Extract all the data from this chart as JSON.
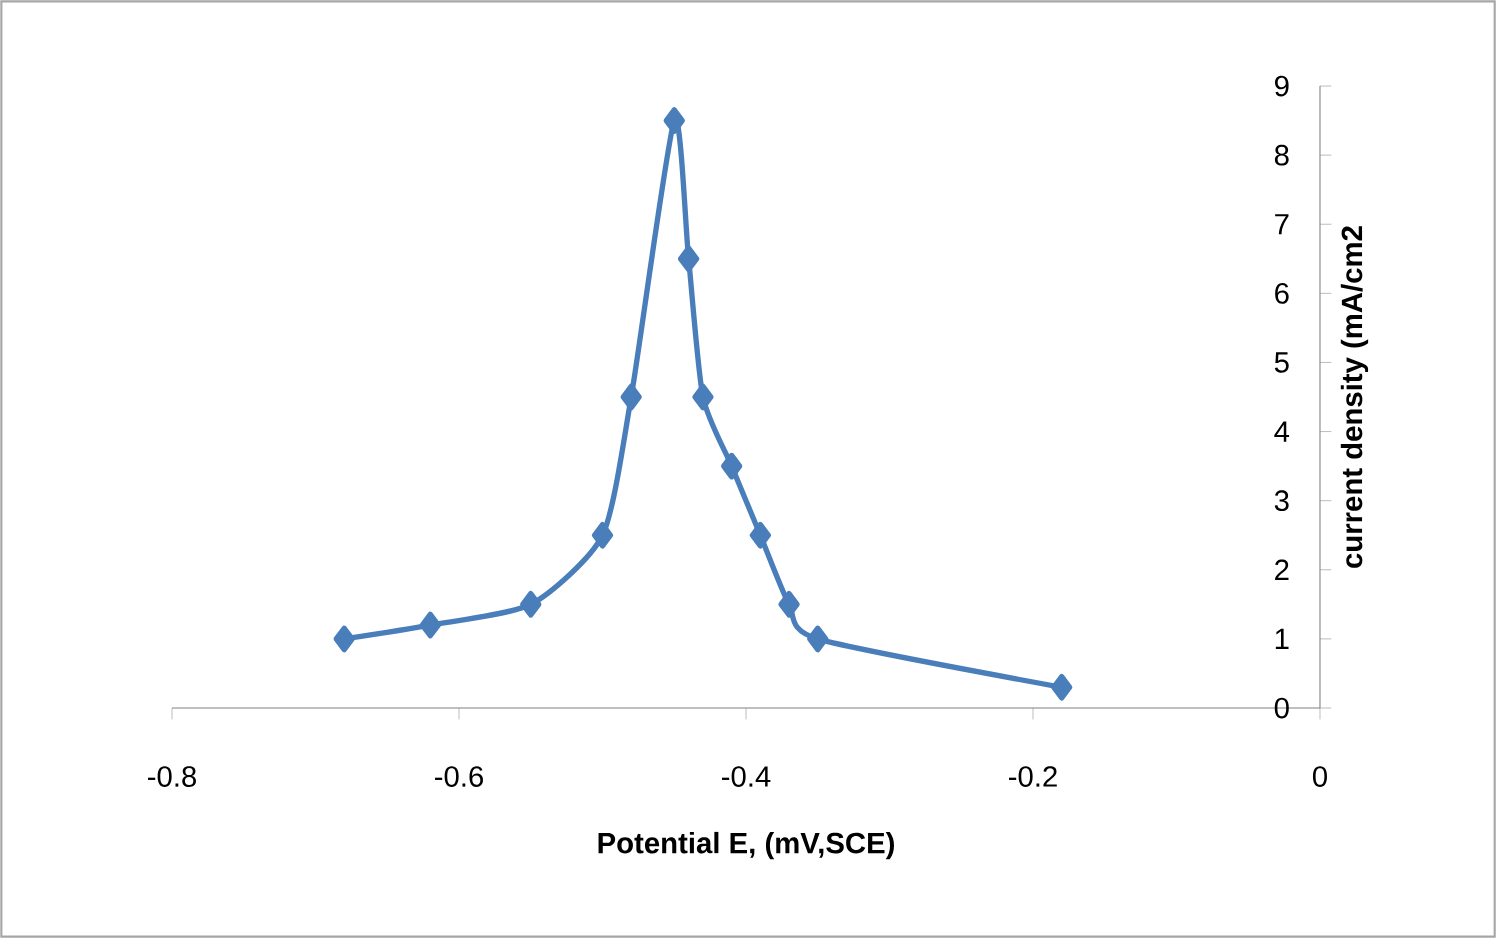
{
  "chart_data": {
    "type": "line",
    "xlabel": "Potential E, (mV,SCE)",
    "ylabel": "current density (mA/cm2",
    "x": [
      -0.68,
      -0.62,
      -0.55,
      -0.5,
      -0.48,
      -0.45,
      -0.44,
      -0.43,
      -0.41,
      -0.39,
      -0.37,
      -0.35,
      -0.18
    ],
    "series": [
      {
        "color": "#4a7ebb",
        "values": [
          1,
          1.2,
          1.5,
          2.5,
          4.5,
          8.5,
          6.5,
          4.5,
          3.5,
          2.5,
          1.5,
          1,
          0.3
        ]
      }
    ],
    "xlim": [
      -0.8,
      0
    ],
    "ylim": [
      0,
      9
    ],
    "xticks": [
      -0.8,
      -0.6,
      -0.4,
      -0.2,
      0
    ],
    "yticks": [
      0,
      1,
      2,
      3,
      4,
      5,
      6,
      7,
      8,
      9
    ],
    "marker": "diamond",
    "line_style": "solid",
    "grid": false
  }
}
